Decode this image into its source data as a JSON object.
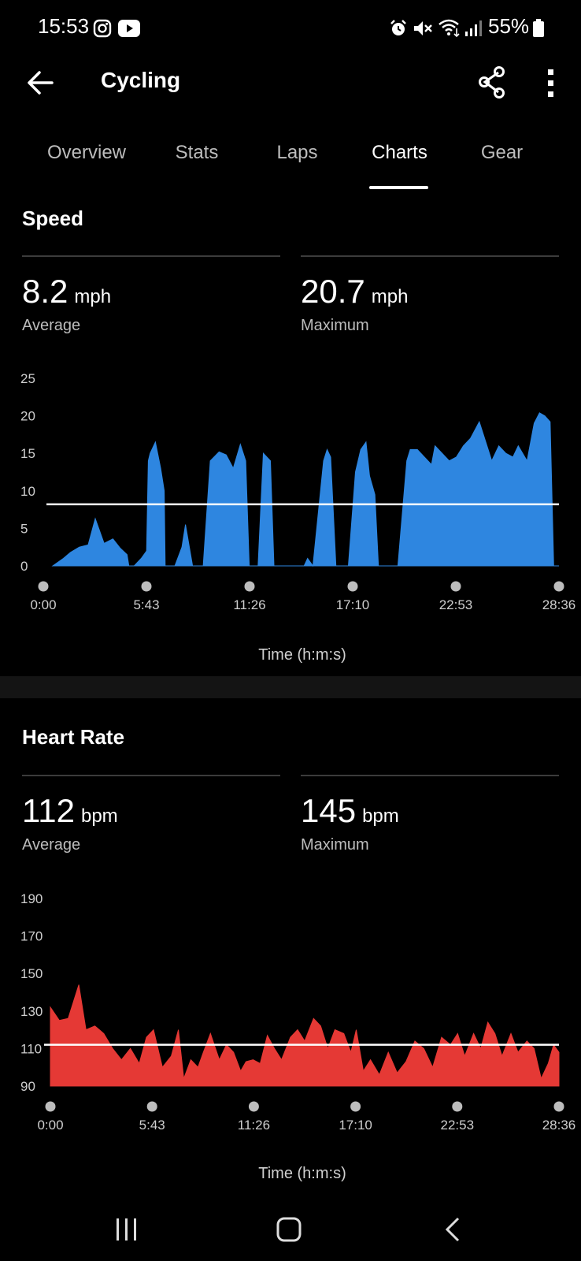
{
  "status_bar": {
    "time": "15:53",
    "battery": "55%",
    "icons": [
      "instagram-icon",
      "youtube-icon",
      "alarm-icon",
      "mute-icon",
      "wifi-icon",
      "signal-icon",
      "battery-icon"
    ]
  },
  "app_bar": {
    "title": "Cycling",
    "icons": [
      "back-arrow-icon",
      "share-icon",
      "more-vert-icon"
    ]
  },
  "tabs": [
    {
      "label": "Overview",
      "active": false
    },
    {
      "label": "Stats",
      "active": false
    },
    {
      "label": "Laps",
      "active": false
    },
    {
      "label": "Charts",
      "active": true
    },
    {
      "label": "Gear",
      "active": false
    }
  ],
  "speed": {
    "title": "Speed",
    "average": {
      "value": "8.2",
      "unit": "mph",
      "label": "Average"
    },
    "maximum": {
      "value": "20.7",
      "unit": "mph",
      "label": "Maximum"
    },
    "x_axis_title": "Time (h:m:s)"
  },
  "heart_rate": {
    "title": "Heart Rate",
    "average": {
      "value": "112",
      "unit": "bpm",
      "label": "Average"
    },
    "maximum": {
      "value": "145",
      "unit": "bpm",
      "label": "Maximum"
    },
    "x_axis_title": "Time (h:m:s)"
  },
  "nav_bar": {
    "icons": [
      "recents-icon",
      "home-icon",
      "back-icon"
    ]
  },
  "chart_data": [
    {
      "type": "area",
      "id": "speed",
      "color": "#2e86e0",
      "ylim": [
        0,
        25
      ],
      "yticks": [
        0,
        5,
        10,
        15,
        20,
        25
      ],
      "xticks": [
        "0:00",
        "5:43",
        "11:26",
        "17:10",
        "22:53",
        "28:36"
      ],
      "x_unit": "minutes",
      "xlim": [
        0,
        28.6
      ],
      "reference_line": 8.2,
      "x": [
        0.0,
        0.6,
        1.0,
        1.5,
        2.0,
        2.4,
        2.9,
        3.4,
        3.8,
        4.2,
        4.3,
        4.6,
        5.0,
        5.3,
        5.4,
        5.5,
        5.8,
        6.1,
        6.3,
        6.35,
        6.5,
        6.9,
        7.3,
        7.5,
        7.9,
        8.1,
        8.3,
        8.5,
        8.9,
        9.4,
        9.8,
        10.2,
        10.6,
        10.9,
        11.1,
        11.6,
        11.9,
        12.3,
        12.5,
        12.9,
        13.4,
        14.2,
        14.4,
        14.7,
        15.3,
        15.5,
        15.7,
        16.0,
        16.2,
        16.4,
        16.7,
        17.1,
        17.4,
        17.7,
        17.9,
        18.2,
        18.4,
        18.9,
        19.5,
        20.0,
        20.2,
        20.6,
        21.0,
        21.4,
        21.6,
        22.0,
        22.4,
        22.8,
        23.2,
        23.6,
        24.1,
        24.6,
        24.8,
        25.2,
        25.6,
        26.0,
        26.3,
        26.8,
        27.2,
        27.5,
        27.8,
        28.1,
        28.3,
        28.6
      ],
      "values": [
        0.0,
        1.0,
        1.8,
        2.5,
        2.8,
        6.3,
        3.0,
        3.6,
        2.4,
        1.5,
        0.0,
        0.0,
        1.0,
        2.0,
        14.0,
        15.0,
        16.5,
        13.0,
        10.0,
        0.0,
        0.0,
        0.0,
        2.5,
        5.5,
        0.0,
        0.0,
        0.0,
        0.0,
        14.0,
        15.2,
        14.8,
        13.0,
        16.2,
        14.0,
        0.0,
        0.0,
        15.0,
        14.0,
        0.0,
        0.0,
        0.0,
        0.0,
        1.0,
        0.0,
        14.0,
        15.5,
        14.5,
        0.0,
        0.0,
        0.0,
        0.0,
        12.5,
        15.5,
        16.5,
        12.0,
        9.5,
        0.0,
        0.0,
        0.0,
        14.0,
        15.5,
        15.5,
        14.5,
        13.5,
        16.0,
        15.0,
        14.0,
        14.5,
        16.0,
        17.0,
        19.2,
        15.5,
        14.0,
        16.0,
        15.0,
        14.5,
        16.0,
        14.0,
        19.0,
        20.4,
        20.0,
        19.2,
        0.0,
        0.0
      ]
    },
    {
      "type": "area",
      "id": "heart_rate",
      "color": "#e53935",
      "ylim": [
        90,
        190
      ],
      "yticks": [
        90,
        110,
        130,
        150,
        170,
        190
      ],
      "xticks": [
        "0:00",
        "5:43",
        "11:26",
        "17:10",
        "22:53",
        "28:36"
      ],
      "x_unit": "minutes",
      "xlim": [
        0,
        28.6
      ],
      "reference_line": 112,
      "x": [
        0.0,
        0.5,
        1.0,
        1.6,
        2.0,
        2.5,
        3.0,
        3.5,
        4.0,
        4.5,
        5.0,
        5.4,
        5.8,
        6.3,
        6.8,
        7.2,
        7.5,
        7.9,
        8.3,
        8.6,
        9.0,
        9.5,
        9.9,
        10.3,
        10.7,
        11.0,
        11.4,
        11.8,
        12.2,
        12.6,
        13.0,
        13.5,
        13.9,
        14.3,
        14.8,
        15.2,
        15.6,
        16.0,
        16.5,
        16.9,
        17.2,
        17.6,
        18.0,
        18.5,
        19.0,
        19.5,
        20.0,
        20.5,
        21.0,
        21.5,
        22.0,
        22.5,
        22.9,
        23.3,
        23.8,
        24.2,
        24.6,
        25.0,
        25.4,
        25.9,
        26.3,
        26.8,
        27.2,
        27.6,
        28.0,
        28.3,
        28.6
      ],
      "values": [
        132,
        125,
        126,
        144,
        120,
        122,
        118,
        110,
        104,
        110,
        102,
        116,
        120,
        100,
        106,
        120,
        94,
        104,
        100,
        108,
        118,
        104,
        112,
        108,
        98,
        103,
        104,
        102,
        117,
        110,
        104,
        116,
        120,
        114,
        126,
        122,
        110,
        120,
        118,
        108,
        120,
        98,
        104,
        96,
        108,
        97,
        103,
        114,
        110,
        100,
        116,
        112,
        118,
        106,
        118,
        110,
        124,
        118,
        106,
        118,
        108,
        114,
        110,
        94,
        102,
        112,
        108
      ]
    }
  ]
}
